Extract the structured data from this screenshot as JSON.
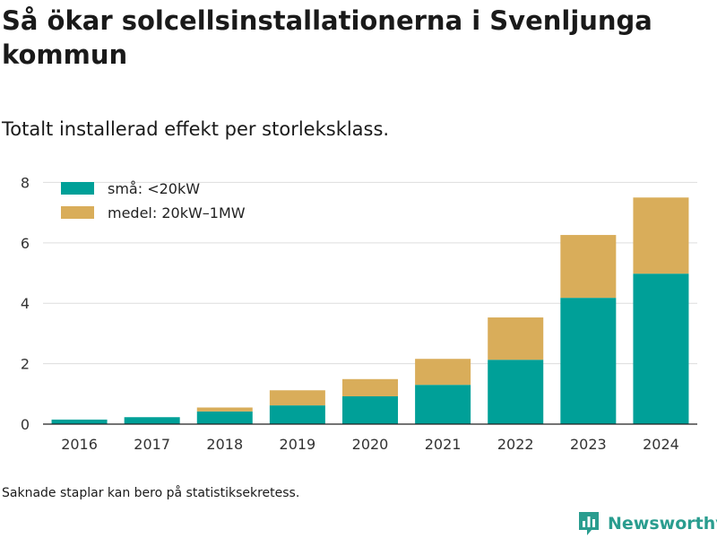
{
  "title": "Så ökar solcellsinstallationerna i Svenljunga kommun",
  "subtitle": "Totalt installerad effekt per storleksklass.",
  "footnote": "Saknade staplar kan bero på statistiksekretess.",
  "brand": {
    "name": "Newsworthy",
    "icon": "newsworthy-logo-icon",
    "color": "#2a9d8f"
  },
  "chart_data": {
    "type": "bar",
    "stacked": true,
    "categories": [
      "2016",
      "2017",
      "2018",
      "2019",
      "2020",
      "2021",
      "2022",
      "2023",
      "2024"
    ],
    "series": [
      {
        "name": "små: <20kW",
        "color": "#00a098",
        "values": [
          0.15,
          0.23,
          0.42,
          0.62,
          0.92,
          1.3,
          2.13,
          4.18,
          4.98
        ]
      },
      {
        "name": "medel: 20kW–1MW",
        "color": "#d9ad5a",
        "values": [
          0.0,
          0.0,
          0.13,
          0.5,
          0.57,
          0.86,
          1.4,
          2.08,
          2.52
        ]
      }
    ],
    "yticks": [
      0,
      2,
      4,
      6,
      8
    ],
    "ylim": [
      0,
      8.25
    ],
    "grid": true,
    "legend_position": "top-left"
  }
}
